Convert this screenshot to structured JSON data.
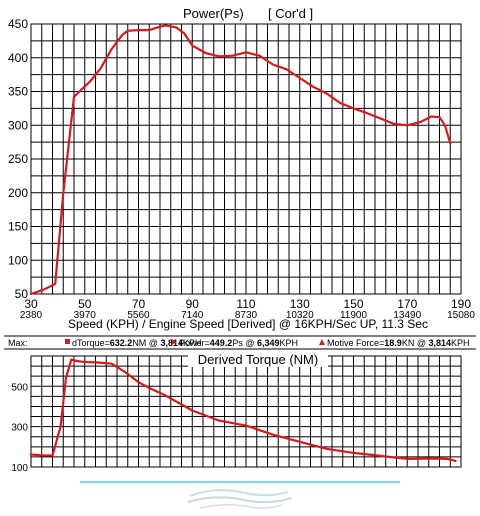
{
  "chart_data": [
    {
      "type": "line",
      "title": "Power(Ps)",
      "subtitle": "[ Cor'd ]",
      "xlabel": "Speed (KPH) / Engine Speed [Derived] @ 16KPH/Sec UP, 11.3 Sec",
      "xlim": [
        30,
        190
      ],
      "ylim": [
        50,
        450
      ],
      "x_ticks": [
        30,
        50,
        70,
        90,
        110,
        130,
        150,
        170,
        190
      ],
      "x_ticks_secondary": [
        "2380",
        "3970",
        "5560",
        "7140",
        "8730",
        "10320",
        "11900",
        "13490",
        "15080"
      ],
      "y_ticks": [
        50,
        100,
        150,
        200,
        250,
        300,
        350,
        400,
        450
      ],
      "grid": true,
      "series": [
        {
          "color": "#d71919",
          "x": [
            30,
            35,
            39,
            42,
            46,
            48,
            52,
            56,
            60,
            64,
            66,
            70,
            74,
            78,
            80,
            84,
            87,
            90,
            95,
            100,
            105,
            110,
            115,
            120,
            125,
            130,
            135,
            140,
            145,
            150,
            155,
            160,
            165,
            170,
            175,
            179,
            182,
            184,
            186
          ],
          "y": [
            50,
            57,
            65,
            200,
            342,
            350,
            365,
            385,
            413,
            434,
            440,
            441,
            441,
            446,
            448,
            445,
            436,
            418,
            407,
            402,
            403,
            408,
            403,
            390,
            383,
            370,
            357,
            347,
            333,
            325,
            318,
            310,
            302,
            300,
            305,
            313,
            312,
            300,
            273
          ]
        }
      ]
    },
    {
      "type": "line",
      "title": "Derived Torque (NM)",
      "xlim": [
        30,
        190
      ],
      "ylim": [
        100,
        650
      ],
      "y_ticks": [
        100,
        300,
        500
      ],
      "grid": true,
      "series": [
        {
          "color": "#d71919",
          "x": [
            30,
            34,
            38,
            41,
            43,
            45,
            47,
            49,
            51,
            55,
            60,
            65,
            70,
            75,
            80,
            90,
            100,
            110,
            120,
            130,
            140,
            150,
            160,
            170,
            180,
            185,
            188
          ],
          "y": [
            162,
            158,
            157,
            300,
            540,
            632,
            625,
            622,
            620,
            618,
            612,
            570,
            520,
            485,
            455,
            380,
            330,
            305,
            260,
            225,
            190,
            170,
            155,
            140,
            142,
            140,
            130
          ]
        }
      ]
    }
  ],
  "max_bar": {
    "label": "Max:",
    "torque_name": "dTorque=",
    "torque_value": "632.2",
    "torque_unit": "NM @ ",
    "torque_at": "3,814",
    "torque_at_unit": "KPH",
    "power_name": "Power=",
    "power_value": "449.2",
    "power_unit": "Ps @ ",
    "power_at": "6,349",
    "power_at_unit": "KPH",
    "force_name": "Motive Force=",
    "force_value": "18.9",
    "force_unit": "KN @ ",
    "force_at": "3,814",
    "force_at_unit": "KPH"
  },
  "colors": {
    "curve": "#d71919",
    "grid": "#000000",
    "footer_line": "#7fd4ea"
  },
  "icons": [
    "logo-watermark-icon"
  ]
}
